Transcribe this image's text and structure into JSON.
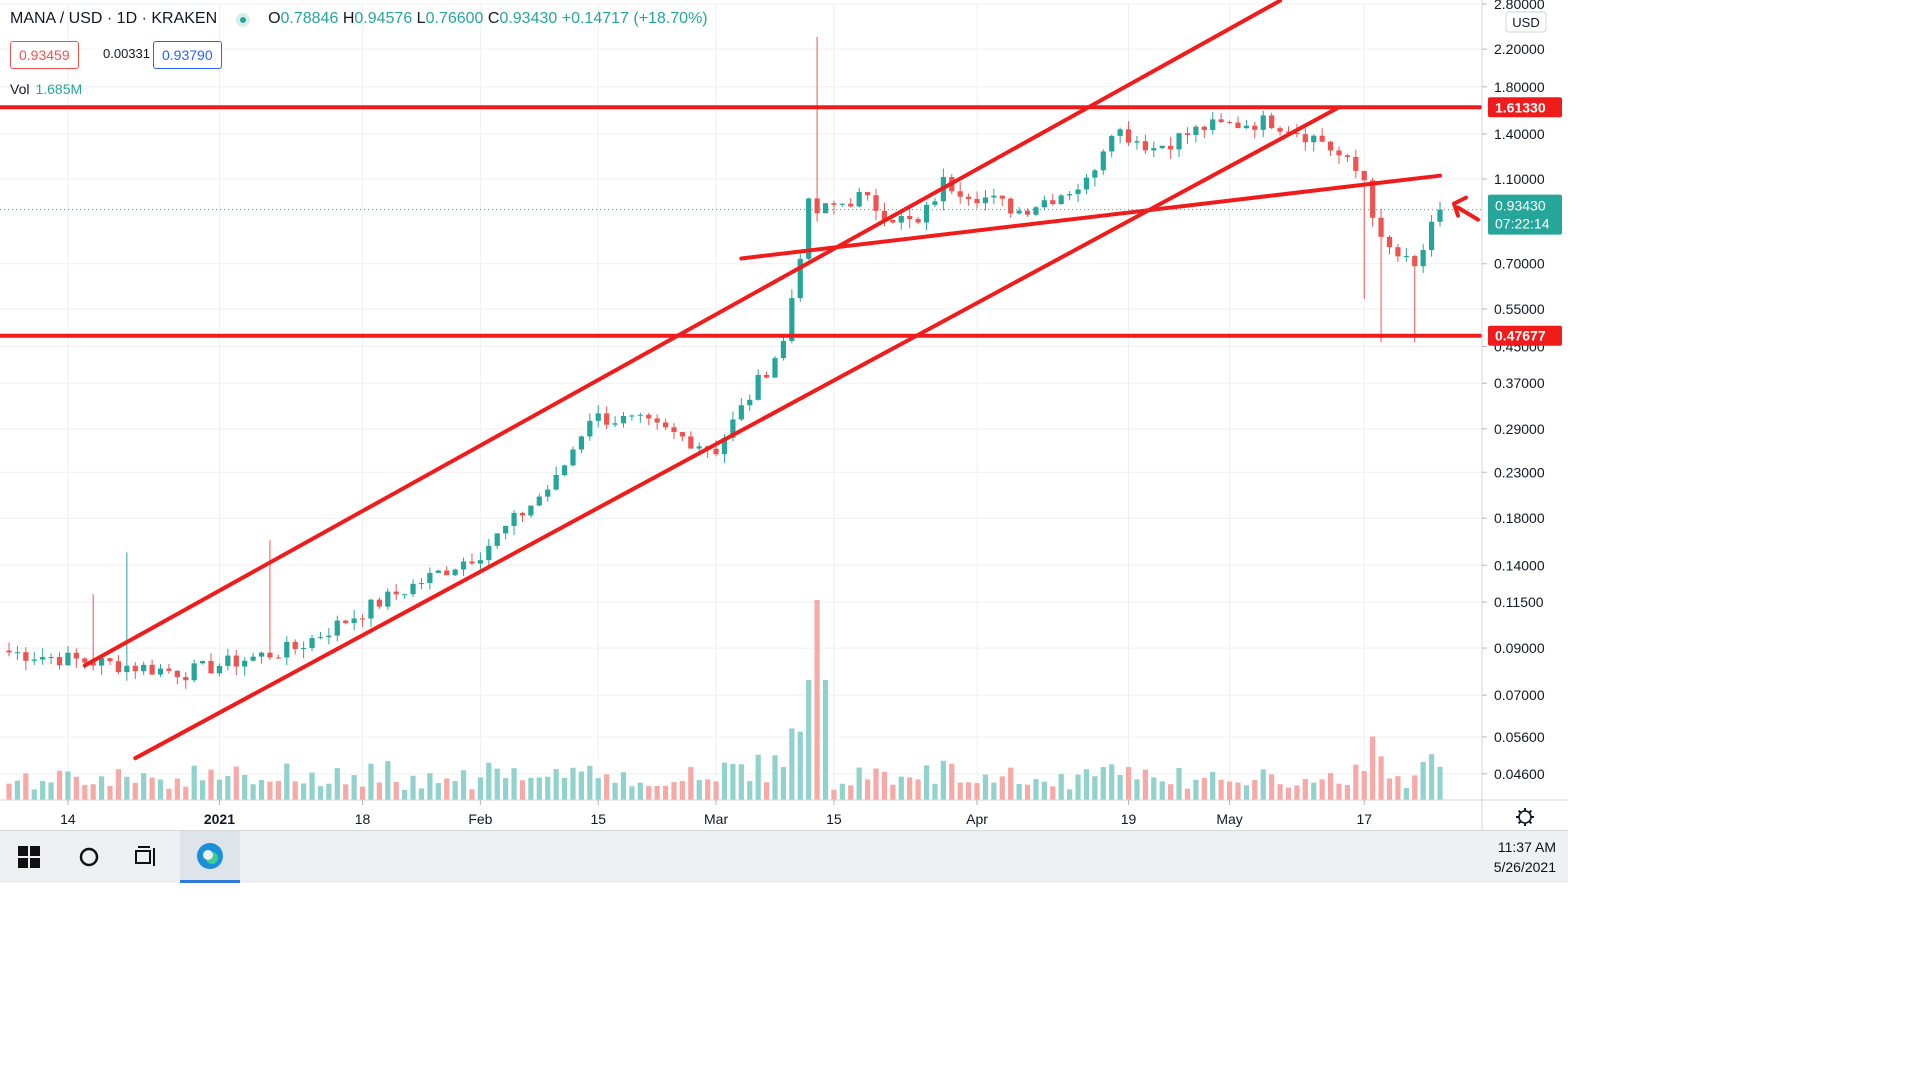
{
  "legend": {
    "symbol": "MANA / USD · 1D · KRAKEN",
    "o_label": "O",
    "o": "0.78846",
    "h_label": "H",
    "h": "0.94576",
    "l_label": "L",
    "l": "0.76600",
    "c_label": "C",
    "c": "0.93430",
    "change": "+0.14717 (+18.70%)",
    "bid": "0.93459",
    "spread": "0.00331",
    "ask": "0.93790",
    "vol_label": "Vol",
    "vol_value": "1.685M"
  },
  "colors": {
    "up": "#26a69a",
    "down": "#ef5350",
    "vol_up": "#92d2cc",
    "vol_down": "#f7a9a7",
    "drawing": "#f01c1c",
    "grid": "#eef0f3"
  },
  "chart_data": {
    "type": "candlestick",
    "y_scale": "log",
    "y_unit": "USD",
    "ylim": [
      0.04,
      2.8
    ],
    "y_ticks": [
      "2.80000",
      "2.20000",
      "1.80000",
      "1.40000",
      "1.10000",
      "0.70000",
      "0.55000",
      "0.45000",
      "0.37000",
      "0.29000",
      "0.23000",
      "0.18000",
      "0.14000",
      "0.11500",
      "0.09000",
      "0.07000",
      "0.05600",
      "0.04600"
    ],
    "y_tick_values": [
      2.8,
      2.2,
      1.8,
      1.4,
      1.1,
      0.7,
      0.55,
      0.45,
      0.37,
      0.29,
      0.23,
      0.18,
      0.14,
      0.115,
      0.09,
      0.07,
      0.056,
      0.046
    ],
    "x_range": [
      "2020-12-07",
      "2021-05-26"
    ],
    "x_ticks": [
      {
        "date": "2020-12-14",
        "label": "14"
      },
      {
        "date": "2021-01-01",
        "label": "2021"
      },
      {
        "date": "2021-01-18",
        "label": "18"
      },
      {
        "date": "2021-02-01",
        "label": "Feb"
      },
      {
        "date": "2021-02-15",
        "label": "15"
      },
      {
        "date": "2021-03-01",
        "label": "Mar"
      },
      {
        "date": "2021-03-15",
        "label": "15"
      },
      {
        "date": "2021-04-01",
        "label": "Apr"
      },
      {
        "date": "2021-04-19",
        "label": "19"
      },
      {
        "date": "2021-05-01",
        "label": "May"
      },
      {
        "date": "2021-05-17",
        "label": "17"
      }
    ],
    "last_price": "0.93430",
    "countdown": "07:22:14",
    "last_value": 0.9343,
    "horizontal_levels": [
      {
        "value": 1.6133,
        "label": "1.61330"
      },
      {
        "value": 0.47677,
        "label": "0.47677"
      }
    ],
    "trend_lines": [
      {
        "from": [
          "2020-12-16",
          0.082
        ],
        "to": [
          "2021-05-07",
          2.85
        ]
      },
      {
        "from": [
          "2020-12-22",
          0.05
        ],
        "to": [
          "2021-05-14",
          1.6133
        ]
      },
      {
        "from": [
          "2021-03-04",
          0.72
        ],
        "to": [
          "2021-05-26",
          1.12
        ]
      }
    ],
    "anchor_dates": [
      "2020-12-07",
      "2020-12-28",
      "2021-01-10",
      "2021-01-20",
      "2021-02-01",
      "2021-02-10",
      "2021-02-14",
      "2021-02-20",
      "2021-03-01",
      "2021-03-09",
      "2021-03-12",
      "2021-03-13",
      "2021-03-18",
      "2021-03-22",
      "2021-03-25",
      "2021-03-28",
      "2021-04-06",
      "2021-04-14",
      "2021-04-17",
      "2021-04-22",
      "2021-04-28",
      "2021-05-06",
      "2021-05-12",
      "2021-05-17",
      "2021-05-19",
      "2021-05-23",
      "2021-05-26"
    ],
    "anchor_closes": [
      0.088,
      0.079,
      0.09,
      0.115,
      0.15,
      0.22,
      0.31,
      0.3,
      0.26,
      0.46,
      0.95,
      0.92,
      1.0,
      0.9,
      0.86,
      1.08,
      0.93,
      1.08,
      1.45,
      1.3,
      1.45,
      1.5,
      1.35,
      1.1,
      0.78,
      0.68,
      0.9343
    ],
    "volume": {
      "ylim": [
        0,
        1.0
      ]
    }
  },
  "taskbar": {
    "time": "11:37 AM",
    "date": "5/26/2021"
  }
}
